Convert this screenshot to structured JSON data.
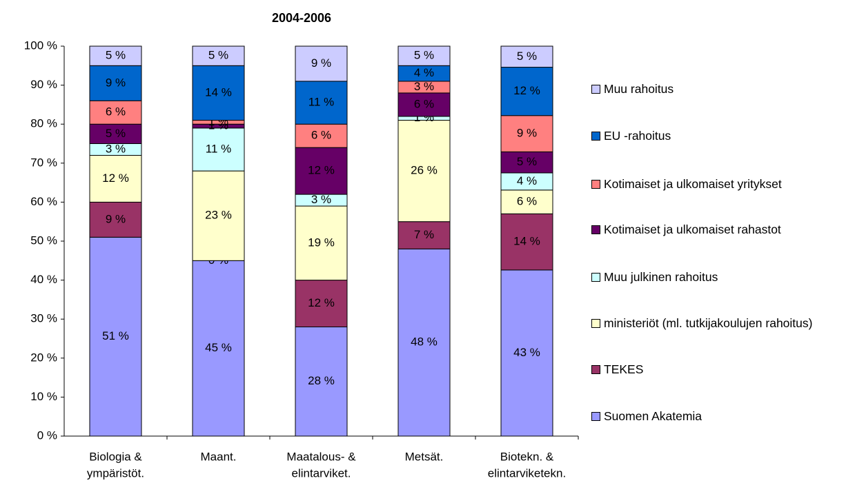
{
  "chart_data": {
    "type": "stacked_bar",
    "title": "2004-2006",
    "categories": [
      [
        "Biologia &",
        "ympäristöt."
      ],
      [
        "Maant."
      ],
      [
        "Maatalous- &",
        "elintarviket."
      ],
      [
        "Metsät."
      ],
      [
        "Biotekn. &",
        "elintarviketekn."
      ]
    ],
    "ylim": [
      0,
      100
    ],
    "yticks": [
      {
        "value": 0,
        "label": "0 %"
      },
      {
        "value": 10,
        "label": "10 %"
      },
      {
        "value": 20,
        "label": "20 %"
      },
      {
        "value": 30,
        "label": "30 %"
      },
      {
        "value": 40,
        "label": "40 %"
      },
      {
        "value": 50,
        "label": "50 %"
      },
      {
        "value": 60,
        "label": "60 %"
      },
      {
        "value": 70,
        "label": "70 %"
      },
      {
        "value": 80,
        "label": "80 %"
      },
      {
        "value": 90,
        "label": "90 %"
      },
      {
        "value": 100,
        "label": "100 %"
      }
    ],
    "legend": "right",
    "series": [
      {
        "name": "Suomen Akatemia",
        "color": "#9999ff",
        "values": [
          51,
          45,
          28,
          48,
          42.6
        ],
        "value_labels": [
          "51 %",
          "45 %",
          "28 %",
          "48 %",
          "43 %"
        ]
      },
      {
        "name": "TEKES",
        "color": "#993366",
        "values": [
          9,
          0,
          12,
          7,
          14.4
        ],
        "value_labels": [
          "9 %",
          "0 %",
          "12 %",
          "7 %",
          "14 %"
        ]
      },
      {
        "name": "ministeriöt (ml. tutkijakoulujen rahoitus)",
        "color": "#ffffcc",
        "values": [
          12,
          23,
          19,
          26,
          6.1
        ],
        "value_labels": [
          "12 %",
          "23 %",
          "19 %",
          "26 %",
          "6 %"
        ]
      },
      {
        "name": "Muu julkinen rahoitus",
        "color": "#ccffff",
        "values": [
          3,
          11,
          3,
          1,
          4.4
        ],
        "value_labels": [
          "3 %",
          "11 %",
          "3 %",
          "1 %",
          "4 %"
        ]
      },
      {
        "name": "Kotimaiset ja ulkomaiset rahastot",
        "color": "#660066",
        "values": [
          5,
          1,
          12,
          6,
          5.4
        ],
        "value_labels": [
          "5 %",
          "1 %",
          "12 %",
          "6 %",
          "5 %"
        ]
      },
      {
        "name": "Kotimaiset ja ulkomaiset yritykset",
        "color": "#ff8080",
        "values": [
          6,
          1,
          6,
          3,
          9.3
        ],
        "value_labels": [
          "6 %",
          "1 %",
          "6 %",
          "3 %",
          "9 %"
        ]
      },
      {
        "name": "EU -rahoitus",
        "color": "#0066cc",
        "values": [
          9,
          14,
          11,
          4,
          12.4
        ],
        "value_labels": [
          "9 %",
          "14 %",
          "11 %",
          "4 %",
          "12 %"
        ]
      },
      {
        "name": "Muu rahoitus",
        "color": "#ccccff",
        "values": [
          5,
          5,
          9,
          5,
          5.4
        ],
        "value_labels": [
          "5 %",
          "5 %",
          "9 %",
          "5 %",
          "5 %"
        ]
      }
    ]
  }
}
